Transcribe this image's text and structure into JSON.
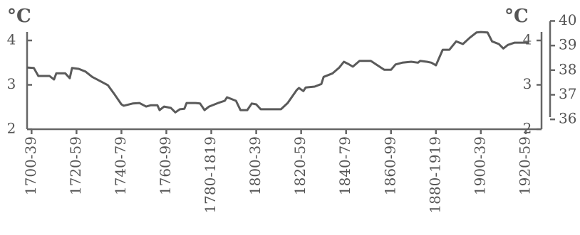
{
  "chart_data": {
    "type": "line",
    "ylabel": "°C",
    "y2label": "°C",
    "color": "#5a5a5a",
    "x": [
      1698,
      1701,
      1703,
      1708,
      1710,
      1711,
      1715,
      1717,
      1718,
      1721,
      1724,
      1727,
      1730,
      1734,
      1737,
      1740,
      1741,
      1745,
      1748,
      1751,
      1753,
      1756,
      1757,
      1759,
      1762,
      1764,
      1766,
      1768,
      1769,
      1773,
      1775,
      1777,
      1779,
      1783,
      1786,
      1787,
      1791,
      1793,
      1796,
      1798,
      1800,
      1802,
      1808,
      1811,
      1814,
      1818,
      1819,
      1821,
      1822,
      1826,
      1829,
      1830,
      1834,
      1837,
      1839,
      1841,
      1843,
      1846,
      1851,
      1854,
      1857,
      1860,
      1862,
      1865,
      1869,
      1872,
      1873,
      1876,
      1878,
      1880,
      1883,
      1886,
      1889,
      1892,
      1895,
      1898,
      1900,
      1903,
      1905,
      1908,
      1910,
      1912,
      1915,
      1921
    ],
    "values": [
      3.39,
      3.38,
      3.2,
      3.2,
      3.12,
      3.26,
      3.26,
      3.15,
      3.38,
      3.36,
      3.3,
      3.18,
      3.1,
      2.99,
      2.78,
      2.56,
      2.53,
      2.58,
      2.59,
      2.51,
      2.54,
      2.54,
      2.43,
      2.51,
      2.48,
      2.38,
      2.45,
      2.46,
      2.59,
      2.59,
      2.58,
      2.43,
      2.51,
      2.59,
      2.64,
      2.72,
      2.64,
      2.43,
      2.43,
      2.58,
      2.56,
      2.45,
      2.45,
      2.45,
      2.59,
      2.88,
      2.93,
      2.86,
      2.94,
      2.96,
      3.02,
      3.18,
      3.26,
      3.39,
      3.52,
      3.47,
      3.41,
      3.54,
      3.54,
      3.44,
      3.34,
      3.34,
      3.46,
      3.5,
      3.52,
      3.5,
      3.54,
      3.52,
      3.5,
      3.44,
      3.79,
      3.79,
      3.98,
      3.92,
      4.06,
      4.18,
      4.19,
      4.18,
      3.98,
      3.92,
      3.82,
      3.9,
      3.95,
      3.95
    ],
    "xlim": [
      1698,
      1927
    ],
    "xticks": [
      {
        "value": 1700,
        "label": "1700-39"
      },
      {
        "value": 1720,
        "label": "1720-59"
      },
      {
        "value": 1740,
        "label": "1740-79"
      },
      {
        "value": 1760,
        "label": "1760-99"
      },
      {
        "value": 1780,
        "label": "1780-1819"
      },
      {
        "value": 1800,
        "label": "1800-39"
      },
      {
        "value": 1820,
        "label": "1820-59"
      },
      {
        "value": 1840,
        "label": "1840-79"
      },
      {
        "value": 1860,
        "label": "1860-99"
      },
      {
        "value": 1880,
        "label": "1880-1919"
      },
      {
        "value": 1900,
        "label": "1900-39"
      },
      {
        "value": 1920,
        "label": "1920-59"
      }
    ],
    "ylim": [
      2,
      4.44
    ],
    "yticks": [
      2,
      3,
      4
    ],
    "y2lim": [
      2,
      4.44
    ],
    "y2ticks": [
      2,
      3,
      4
    ],
    "y3lim": [
      35.6,
      40
    ],
    "y3ticks": [
      36,
      37,
      38,
      39,
      40
    ]
  }
}
